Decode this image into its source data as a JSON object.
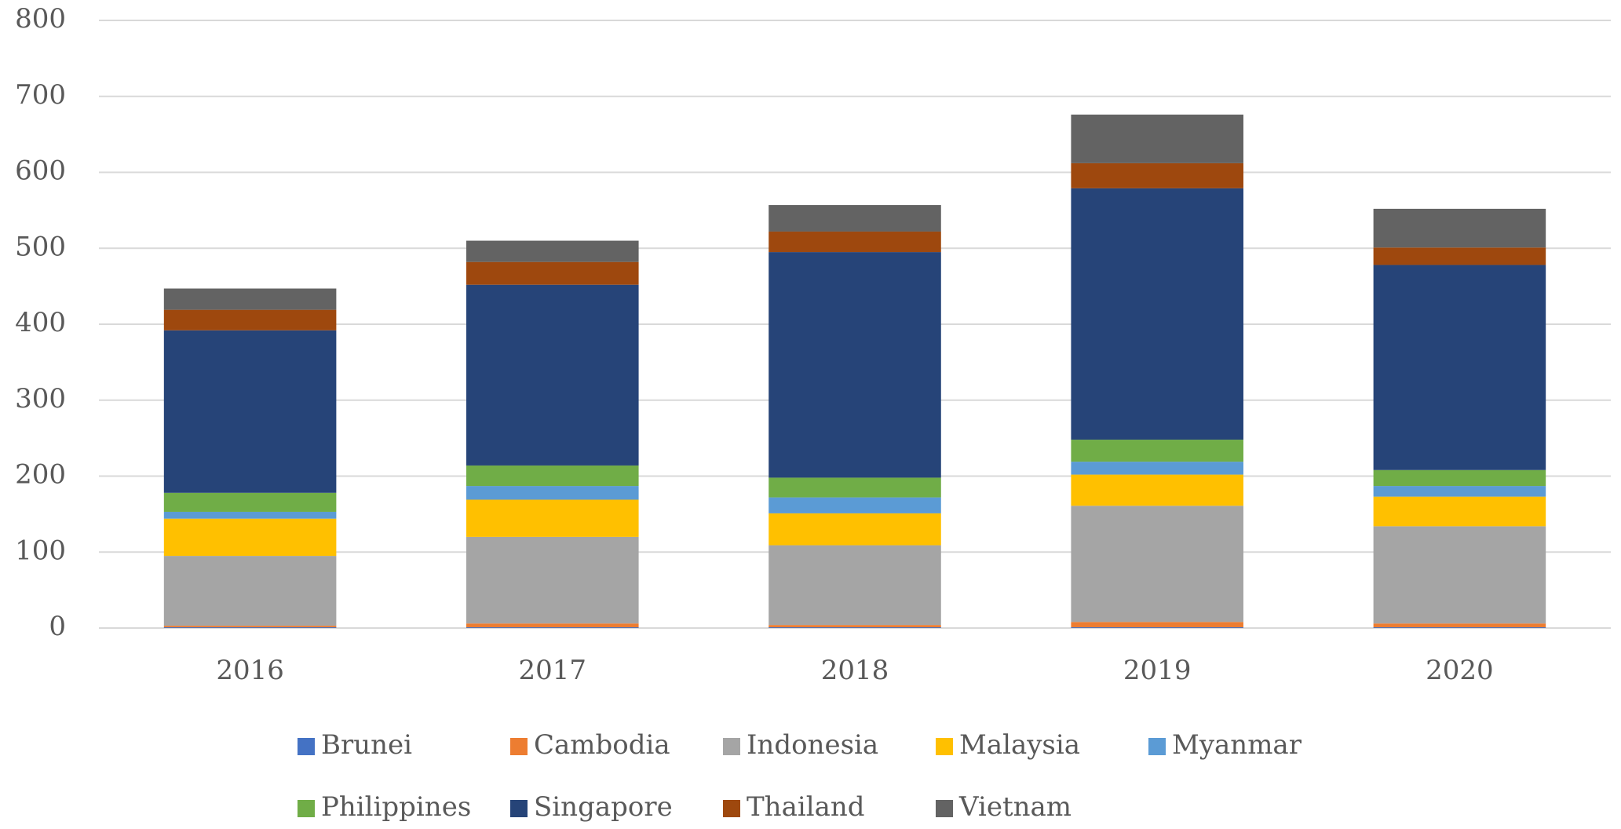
{
  "chart_data": {
    "type": "stacked_bar",
    "categories": [
      "2016",
      "2017",
      "2018",
      "2019",
      "2020"
    ],
    "series": [
      {
        "name": "Brunei",
        "color": "#4472c4",
        "values": [
          1,
          1,
          1,
          1,
          1
        ]
      },
      {
        "name": "Cambodia",
        "color": "#ed7d31",
        "values": [
          2,
          5,
          3,
          7,
          5
        ]
      },
      {
        "name": "Indonesia",
        "color": "#a5a5a5",
        "values": [
          92,
          114,
          105,
          153,
          128
        ]
      },
      {
        "name": "Malaysia",
        "color": "#ffc000",
        "values": [
          49,
          49,
          42,
          41,
          39
        ]
      },
      {
        "name": "Myanmar",
        "color": "#5b9bd5",
        "values": [
          9,
          18,
          21,
          17,
          14
        ]
      },
      {
        "name": "Philippines",
        "color": "#70ad47",
        "values": [
          25,
          27,
          26,
          29,
          21
        ]
      },
      {
        "name": "Singapore",
        "color": "#264478",
        "values": [
          214,
          238,
          297,
          331,
          270
        ]
      },
      {
        "name": "Thailand",
        "color": "#9e480e",
        "values": [
          27,
          30,
          27,
          33,
          23
        ]
      },
      {
        "name": "Vietnam",
        "color": "#636363",
        "values": [
          28,
          28,
          35,
          64,
          51
        ]
      }
    ],
    "ylim": [
      0,
      800
    ],
    "yticks": [
      0,
      100,
      200,
      300,
      400,
      500,
      600,
      700,
      800
    ],
    "grid": true,
    "legend": "bottom"
  }
}
